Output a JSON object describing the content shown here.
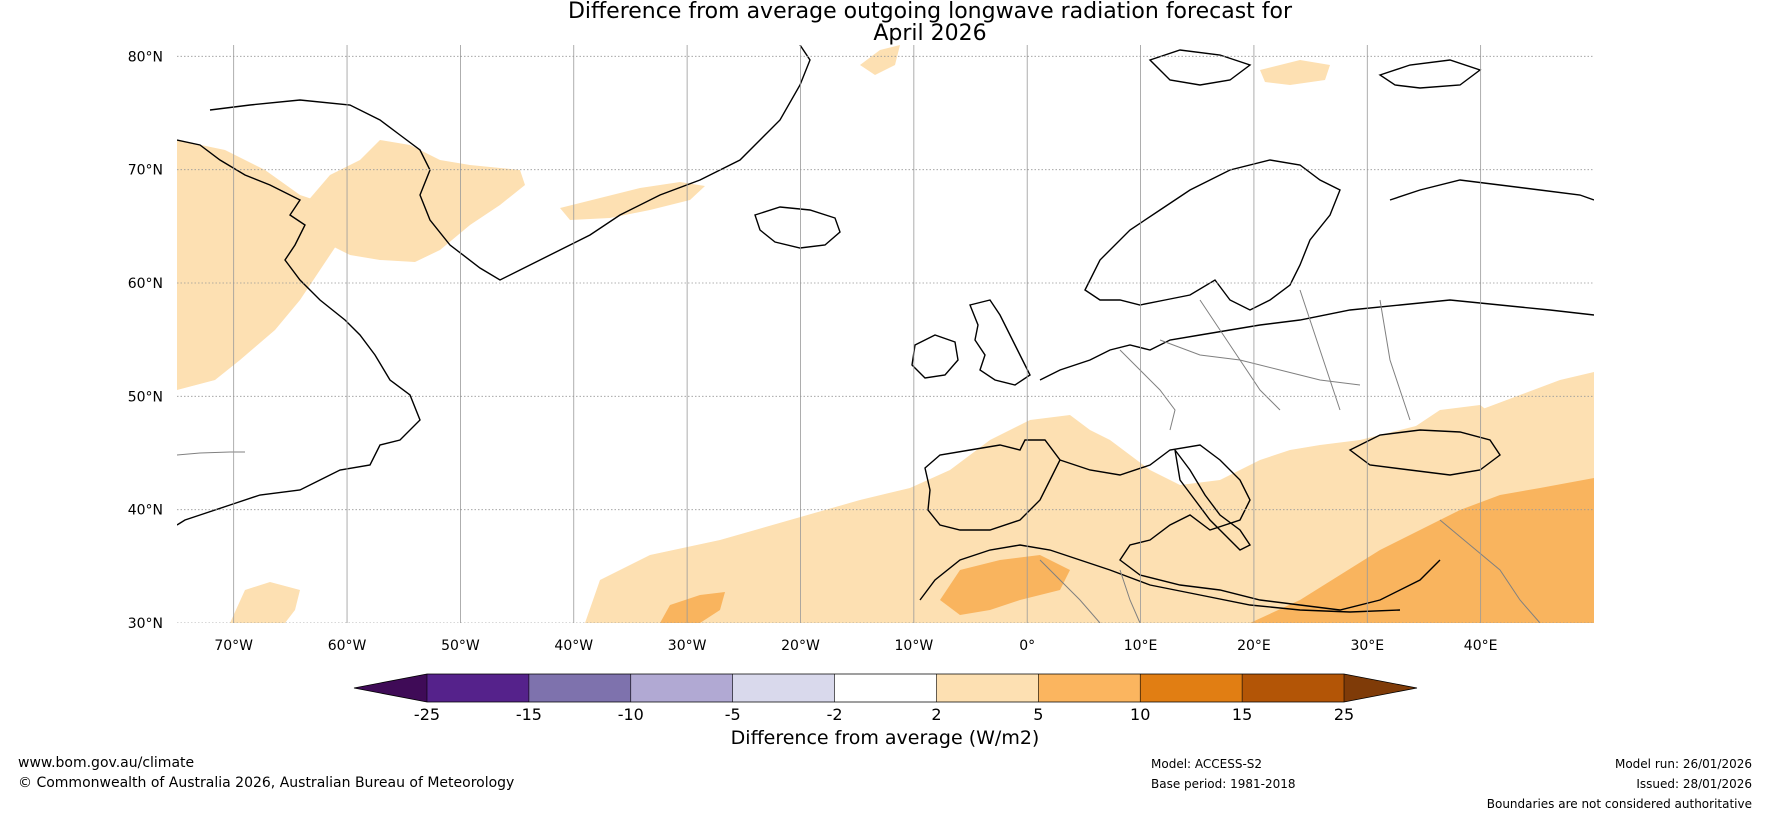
{
  "title": {
    "line1": "Difference from average outgoing longwave radiation forecast for",
    "line2": "April 2026"
  },
  "map": {
    "lon_range": [
      -75,
      50
    ],
    "lat_range": [
      30,
      81
    ],
    "lon_ticks": [
      {
        "value": -70,
        "label": "70°W"
      },
      {
        "value": -60,
        "label": "60°W"
      },
      {
        "value": -50,
        "label": "50°W"
      },
      {
        "value": -40,
        "label": "40°W"
      },
      {
        "value": -30,
        "label": "30°W"
      },
      {
        "value": -20,
        "label": "20°W"
      },
      {
        "value": -10,
        "label": "10°W"
      },
      {
        "value": 0,
        "label": "0°"
      },
      {
        "value": 10,
        "label": "10°E"
      },
      {
        "value": 20,
        "label": "20°E"
      },
      {
        "value": 30,
        "label": "30°E"
      },
      {
        "value": 40,
        "label": "40°E"
      }
    ],
    "lat_ticks": [
      {
        "value": 80,
        "label": "80°N"
      },
      {
        "value": 70,
        "label": "70°N"
      },
      {
        "value": 60,
        "label": "60°N"
      },
      {
        "value": 50,
        "label": "50°N"
      },
      {
        "value": 40,
        "label": "40°N"
      },
      {
        "value": 30,
        "label": "30°N"
      }
    ],
    "colors": {
      "anomaly_2_5": "#fde0b2",
      "anomaly_5_10": "#f9b45e",
      "coastline": "#000000",
      "border": "#808080",
      "grid": "#999999"
    }
  },
  "colorbar": {
    "label": "Difference from average (W/m2)",
    "ticks": [
      "-25",
      "-15",
      "-10",
      "-5",
      "-2",
      "2",
      "5",
      "10",
      "15",
      "25"
    ],
    "colors": [
      "#3f0b57",
      "#55228b",
      "#7e72ad",
      "#b1a9d3",
      "#d9d9ec",
      "#ffffff",
      "#fde0b2",
      "#fbb55f",
      "#e17e13",
      "#b35506",
      "#7f3b08"
    ]
  },
  "footer": {
    "website": "www.bom.gov.au/climate",
    "copyright": "© Commonwealth of Australia 2026, Australian Bureau of Meteorology",
    "model": "Model: ACCESS-S2",
    "base_period": "Base period: 1981-2018",
    "model_run": "Model run: 26/01/2026",
    "issued": "Issued: 28/01/2026",
    "disclaimer": "Boundaries are not considered authoritative"
  }
}
